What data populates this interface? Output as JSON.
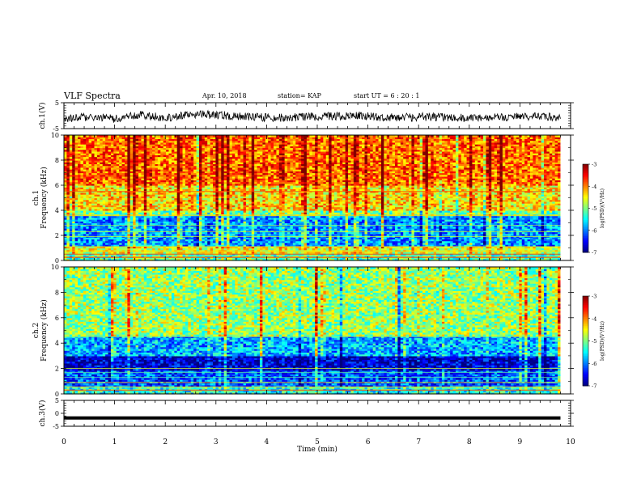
{
  "header": {
    "title": "VLF Spectra",
    "date": "Apr. 10, 2018",
    "station": "station= KAP",
    "start_time": "start  UT =   6  : 20 : 1"
  },
  "chart_data": [
    {
      "type": "line",
      "panel": "ch1-waveform",
      "ylabel": "ch.1(V)",
      "ylim": [
        -5,
        5
      ],
      "y_ticks": [
        "5",
        "-5"
      ],
      "xlim": [
        0,
        10
      ],
      "series": [
        {
          "values": [
            -1.0,
            -0.5,
            -1.2,
            0.3,
            -0.8,
            0.6,
            0.2,
            -0.3,
            -0.9,
            -0.6,
            -0.2,
            0.0,
            -0.5,
            -0.7,
            -0.4,
            -0.8,
            -1.0,
            -0.6,
            -0.3,
            -0.5
          ]
        }
      ]
    },
    {
      "type": "heatmap",
      "panel": "ch1-spectrogram",
      "ylabel": "ch.1\nFrequency (kHz)",
      "ylim": [
        0,
        10
      ],
      "y_ticks": [
        "0",
        "2",
        "4",
        "6",
        "8",
        "10"
      ],
      "xlim": [
        0,
        10
      ],
      "colorbar": {
        "label": "log(PSD)(V²/Hz)",
        "range": [
          -7,
          -3
        ],
        "ticks": [
          "-3",
          "-4",
          "-5",
          "-6",
          "-7"
        ]
      },
      "band_profile": [
        {
          "f": [
            0.0,
            0.6
          ],
          "level": -5.2
        },
        {
          "f": [
            0.6,
            1.1
          ],
          "level": -4.6
        },
        {
          "f": [
            1.1,
            3.5
          ],
          "level": -5.9
        },
        {
          "f": [
            3.5,
            4.0
          ],
          "level": -5.0
        },
        {
          "f": [
            4.0,
            6.0
          ],
          "level": -4.4
        },
        {
          "f": [
            6.0,
            10.0
          ],
          "level": -3.9
        }
      ]
    },
    {
      "type": "heatmap",
      "panel": "ch2-spectrogram",
      "ylabel": "ch.2\nFrequency (kHz)",
      "ylim": [
        0,
        10
      ],
      "y_ticks": [
        "0",
        "2",
        "4",
        "6",
        "8",
        "10"
      ],
      "xlim": [
        0,
        10
      ],
      "colorbar": {
        "label": "log(PSD)(V²/Hz)",
        "range": [
          -7,
          -3
        ],
        "ticks": [
          "-3",
          "-4",
          "-5",
          "-6",
          "-7"
        ]
      },
      "band_profile": [
        {
          "f": [
            0.0,
            0.6
          ],
          "level": -5.4
        },
        {
          "f": [
            0.6,
            1.8
          ],
          "level": -6.2
        },
        {
          "f": [
            1.8,
            3.0
          ],
          "level": -6.7
        },
        {
          "f": [
            3.0,
            4.5
          ],
          "level": -5.8
        },
        {
          "f": [
            4.5,
            10.0
          ],
          "level": -4.9
        }
      ]
    },
    {
      "type": "line",
      "panel": "ch3-waveform",
      "ylabel": "ch.3(V)",
      "ylim": [
        -5,
        5
      ],
      "y_ticks": [
        "5",
        "0",
        "-5"
      ],
      "xlim": [
        0,
        10
      ],
      "series": [
        {
          "values": [
            -1.8,
            -1.8,
            -1.8,
            -1.8,
            -1.8,
            -1.8,
            -1.8,
            -1.8,
            -1.8,
            -1.8
          ]
        }
      ]
    }
  ],
  "x_axis": {
    "label": "Time (min)",
    "ticks": [
      "0",
      "1",
      "2",
      "3",
      "4",
      "5",
      "6",
      "7",
      "8",
      "9",
      "10"
    ],
    "range": [
      0,
      10
    ],
    "data_end": 9.8
  }
}
